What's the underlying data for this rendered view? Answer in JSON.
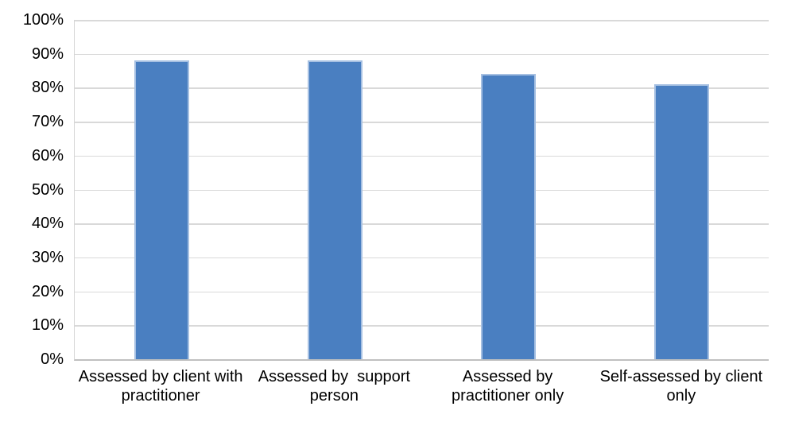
{
  "chart_data": {
    "type": "bar",
    "title": "",
    "categories": [
      "Assessed by client with\npractitioner",
      "Assessed by  support\nperson",
      "Assessed by\npractitioner only",
      "Self-assessed by client\nonly"
    ],
    "values": [
      88,
      88,
      84,
      81
    ],
    "unit": "%",
    "xlabel": "",
    "ylabel": "",
    "ylim": [
      0,
      100
    ],
    "ytick_step": 10,
    "ytick_labels": [
      "0%",
      "10%",
      "20%",
      "30%",
      "40%",
      "50%",
      "60%",
      "70%",
      "80%",
      "90%",
      "100%"
    ],
    "grid": true,
    "legend": false,
    "colors": {
      "bar_fill": "#4A7FC1",
      "bar_border": "#A6C0E2",
      "gridline": "#D9D9D9",
      "axis_line": "#C0C0C0",
      "text": "#000000",
      "background": "#FFFFFF"
    }
  }
}
